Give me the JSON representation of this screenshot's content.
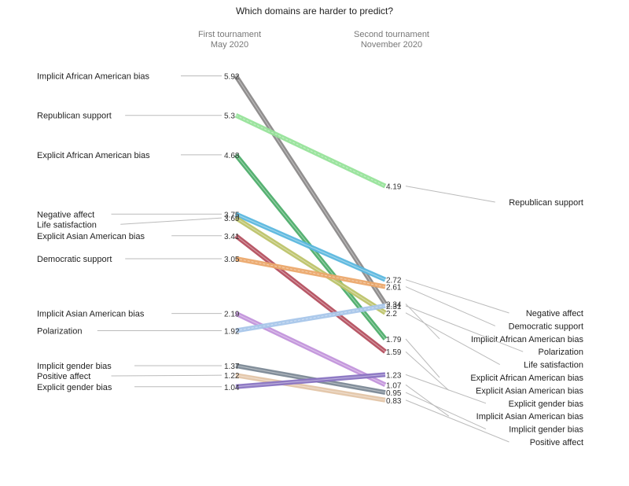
{
  "chart_data": {
    "type": "line",
    "title": "Which domains are harder to predict?",
    "columns": [
      {
        "label": "First tournament",
        "sublabel": "May 2020"
      },
      {
        "label": "Second tournament",
        "sublabel": "November 2020"
      }
    ],
    "series": [
      {
        "name": "Implicit African American bias",
        "values": [
          5.92,
          2.34
        ],
        "color": "#8c8a8a",
        "dashed": false
      },
      {
        "name": "Republican support",
        "values": [
          5.3,
          4.19
        ],
        "color": "#97e39a",
        "dashed": true
      },
      {
        "name": "Explicit African American bias",
        "values": [
          4.68,
          1.79
        ],
        "color": "#4dad6b",
        "dashed": false
      },
      {
        "name": "Negative affect",
        "values": [
          3.75,
          2.72
        ],
        "color": "#5bb8df",
        "dashed": false
      },
      {
        "name": "Life satisfaction",
        "values": [
          3.69,
          2.2
        ],
        "color": "#bdc36a",
        "dashed": false
      },
      {
        "name": "Explicit Asian American bias",
        "values": [
          3.41,
          1.59
        ],
        "color": "#b5505f",
        "dashed": false
      },
      {
        "name": "Democratic support",
        "values": [
          3.05,
          2.61
        ],
        "color": "#eba86c",
        "dashed": true
      },
      {
        "name": "Implicit Asian American bias",
        "values": [
          2.19,
          1.07
        ],
        "color": "#c294dc",
        "dashed": false
      },
      {
        "name": "Polarization",
        "values": [
          1.92,
          2.31
        ],
        "color": "#a8c7ea",
        "dashed": true
      },
      {
        "name": "Implicit gender bias",
        "values": [
          1.37,
          0.95
        ],
        "color": "#7c8995",
        "dashed": false
      },
      {
        "name": "Positive affect",
        "values": [
          1.22,
          0.83
        ],
        "color": "#e3c6a8",
        "dashed": false
      },
      {
        "name": "Explicit gender bias",
        "values": [
          1.04,
          1.23
        ],
        "color": "#8a74c2",
        "dashed": false
      }
    ],
    "left_value_labels": [
      "5.92",
      "5.3",
      "4.68",
      "3.75",
      "3.69",
      "3.41",
      "3.05",
      "2.19",
      "1.92",
      "1.37",
      "1.22",
      "1.04"
    ],
    "right_value_labels": [
      "2.34",
      "4.19",
      "1.79",
      "2.72",
      "2.2",
      "1.59",
      "2.61",
      "1.07",
      "2.31",
      "0.95",
      "0.83",
      "1.23"
    ],
    "right_order": [
      "Republican support",
      "Negative affect",
      "Democratic support",
      "Implicit African American bias",
      "Polarization",
      "Life satisfaction",
      "Explicit African American bias",
      "Explicit Asian American bias",
      "Explicit gender bias",
      "Implicit Asian American bias",
      "Implicit gender bias",
      "Positive affect"
    ]
  }
}
